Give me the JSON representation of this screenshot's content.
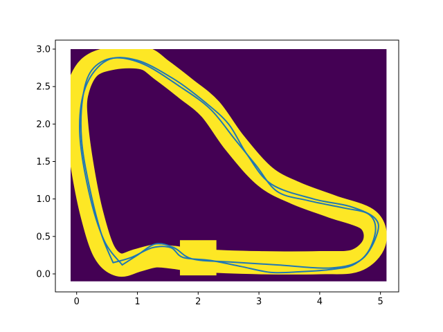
{
  "chart_data": {
    "type": "heatmap",
    "title": "",
    "xlabel": "",
    "ylabel": "",
    "xlim": [
      -0.35,
      5.3
    ],
    "ylim": [
      -0.24,
      3.12
    ],
    "xticks": [
      "0",
      "1",
      "2",
      "3",
      "4",
      "5"
    ],
    "yticks": [
      "0.0",
      "0.5",
      "1.0",
      "1.5",
      "2.0",
      "2.5",
      "3.0"
    ],
    "grid": false,
    "legend": "none",
    "colors": {
      "background": "#440154",
      "track": "#fde725",
      "path": "#1f77b4"
    },
    "image_extent": {
      "x": [
        -0.1,
        5.1
      ],
      "y": [
        -0.1,
        3.0
      ]
    },
    "track_centerline": [
      [
        0.0,
        2.4
      ],
      [
        0.2,
        2.75
      ],
      [
        0.6,
        2.88
      ],
      [
        1.1,
        2.88
      ],
      [
        1.4,
        2.72
      ],
      [
        1.8,
        2.47
      ],
      [
        2.2,
        2.2
      ],
      [
        2.6,
        1.75
      ],
      [
        3.1,
        1.3
      ],
      [
        3.6,
        1.08
      ],
      [
        4.2,
        0.9
      ],
      [
        4.8,
        0.72
      ],
      [
        4.9,
        0.42
      ],
      [
        4.6,
        0.18
      ],
      [
        4.0,
        0.15
      ],
      [
        3.0,
        0.15
      ],
      [
        2.0,
        0.18
      ],
      [
        1.6,
        0.22
      ],
      [
        1.3,
        0.24
      ],
      [
        1.0,
        0.18
      ],
      [
        0.7,
        0.12
      ],
      [
        0.45,
        0.3
      ],
      [
        0.25,
        0.8
      ],
      [
        0.1,
        1.4
      ],
      [
        0.0,
        2.0
      ]
    ],
    "track_width": 0.38,
    "pit_box": {
      "x": [
        1.7,
        2.3
      ],
      "y": [
        -0.02,
        0.45
      ]
    },
    "series": [
      {
        "values": [
          [
            0.6,
            0.15
          ],
          [
            0.9,
            0.22
          ],
          [
            1.25,
            0.35
          ],
          [
            1.55,
            0.35
          ],
          [
            1.75,
            0.22
          ],
          [
            2.2,
            0.18
          ],
          [
            2.7,
            0.1
          ],
          [
            3.2,
            0.02
          ],
          [
            3.7,
            0.03
          ],
          [
            4.2,
            0.06
          ],
          [
            4.55,
            0.12
          ],
          [
            4.8,
            0.3
          ],
          [
            4.92,
            0.6
          ],
          [
            4.8,
            0.8
          ],
          [
            4.4,
            0.88
          ],
          [
            3.8,
            0.98
          ],
          [
            3.3,
            1.1
          ],
          [
            2.95,
            1.45
          ],
          [
            2.6,
            1.8
          ],
          [
            2.2,
            2.2
          ],
          [
            1.7,
            2.5
          ],
          [
            1.1,
            2.8
          ],
          [
            0.6,
            2.88
          ],
          [
            0.25,
            2.72
          ],
          [
            0.1,
            2.35
          ],
          [
            0.08,
            1.8
          ],
          [
            0.2,
            1.2
          ],
          [
            0.4,
            0.55
          ],
          [
            0.6,
            0.15
          ]
        ]
      },
      {
        "values": [
          [
            0.75,
            0.12
          ],
          [
            1.0,
            0.25
          ],
          [
            1.3,
            0.4
          ],
          [
            1.6,
            0.35
          ],
          [
            1.9,
            0.2
          ],
          [
            2.5,
            0.16
          ],
          [
            3.3,
            0.12
          ],
          [
            4.2,
            0.08
          ],
          [
            4.7,
            0.2
          ],
          [
            4.95,
            0.55
          ],
          [
            4.9,
            0.75
          ],
          [
            4.5,
            0.9
          ],
          [
            3.9,
            1.0
          ],
          [
            3.2,
            1.2
          ],
          [
            2.8,
            1.6
          ],
          [
            2.5,
            2.0
          ],
          [
            2.1,
            2.3
          ],
          [
            1.6,
            2.6
          ],
          [
            1.0,
            2.85
          ],
          [
            0.5,
            2.85
          ],
          [
            0.15,
            2.5
          ],
          [
            0.05,
            1.9
          ],
          [
            0.2,
            1.1
          ],
          [
            0.45,
            0.45
          ],
          [
            0.75,
            0.12
          ]
        ]
      }
    ]
  }
}
